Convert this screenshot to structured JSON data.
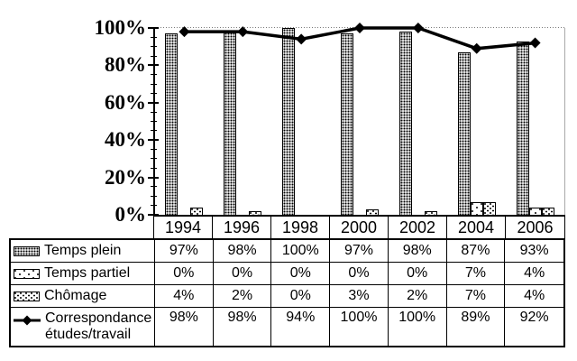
{
  "chart_data": {
    "type": "bar",
    "subtype": "clustered-patterned-bars-with-line-overlay",
    "title": "",
    "categories": [
      "1994",
      "1996",
      "1998",
      "2000",
      "2002",
      "2004",
      "2006"
    ],
    "series": [
      {
        "name": "Temps plein",
        "type": "bar",
        "pattern": "dense-dots",
        "values": [
          97,
          98,
          100,
          97,
          98,
          87,
          93
        ]
      },
      {
        "name": "Temps partiel",
        "type": "bar",
        "pattern": "sparse-dots",
        "values": [
          0,
          0,
          0,
          0,
          0,
          7,
          4
        ]
      },
      {
        "name": "Chômage",
        "type": "bar",
        "pattern": "medium-dots",
        "values": [
          4,
          2,
          0,
          3,
          2,
          7,
          4
        ]
      },
      {
        "name": "Correspondance études/travail",
        "type": "line",
        "marker": "diamond",
        "values": [
          98,
          98,
          94,
          100,
          100,
          89,
          92
        ]
      }
    ],
    "ylim": [
      0,
      100
    ],
    "y_major_step": 20,
    "y_minor_step": 5,
    "y_tick_labels": [
      "0%",
      "20%",
      "40%",
      "60%",
      "80%",
      "100%"
    ],
    "gridlines": [
      100
    ],
    "value_suffix": "%",
    "legend_position": "data-table-left-column",
    "data_table_shown": true
  },
  "table": {
    "legend_rows": [
      {
        "lines": [
          "Temps plein"
        ],
        "key": "dense-dots-swatch"
      },
      {
        "lines": [
          "Temps partiel"
        ],
        "key": "sparse-dots-swatch"
      },
      {
        "lines": [
          "Chômage"
        ],
        "key": "medium-dots-swatch"
      },
      {
        "lines": [
          "Correspondance",
          "études/travail"
        ],
        "key": "line-diamond-key"
      }
    ]
  },
  "colors": {
    "ink": "#000000",
    "background": "#ffffff",
    "gridline_100": "#7a7a7a",
    "plot_right_border": "#a8a8a8"
  }
}
